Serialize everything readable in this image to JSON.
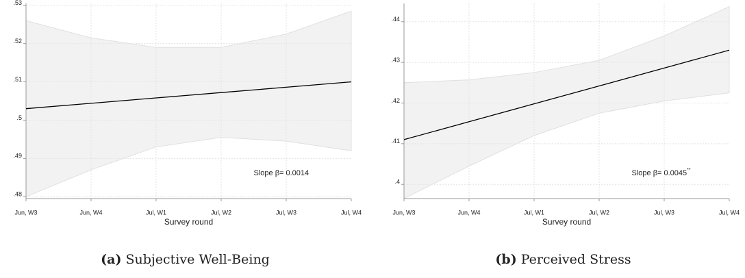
{
  "chart_data": [
    {
      "type": "line",
      "caption_label": "(a)",
      "caption": "Subjective Well-Being",
      "x_label": "Survey round",
      "categories": [
        "Jun, W3",
        "Jun, W4",
        "Jul, W1",
        "Jul, W2",
        "Jul, W3",
        "Jul, W4"
      ],
      "values": [
        0.503,
        0.5044,
        0.5058,
        0.5072,
        0.5086,
        0.51
      ],
      "color": "#000000",
      "band": {
        "upper": [
          0.526,
          0.5215,
          0.519,
          0.519,
          0.5225,
          0.5285
        ],
        "lower": [
          0.48,
          0.487,
          0.493,
          0.4955,
          0.4945,
          0.492
        ],
        "color": "#f2f2f2"
      },
      "annotation": "Slope β= 0.0014",
      "ylim": [
        0.4795,
        0.5305
      ],
      "yticks": [
        {
          "value": 0.48,
          "label": ".48"
        },
        {
          "value": 0.49,
          "label": ".49"
        },
        {
          "value": 0.5,
          "label": ".5"
        },
        {
          "value": 0.51,
          "label": ".51"
        },
        {
          "value": 0.52,
          "label": ".52"
        },
        {
          "value": 0.53,
          "label": ".53"
        }
      ],
      "grid": true
    },
    {
      "type": "line",
      "caption_label": "(b)",
      "caption": "Perceived Stress",
      "x_label": "Survey round",
      "categories": [
        "Jun, W3",
        "Jun, W4",
        "Jul, W1",
        "Jul, W2",
        "Jul, W3",
        "Jul, W4"
      ],
      "values": [
        0.411,
        0.4154,
        0.4198,
        0.4242,
        0.4286,
        0.433
      ],
      "color": "#000000",
      "band": {
        "upper": [
          0.425,
          0.4257,
          0.4275,
          0.4305,
          0.4365,
          0.4437
        ],
        "lower": [
          0.3965,
          0.4045,
          0.412,
          0.4175,
          0.4205,
          0.4225
        ],
        "color": "#f2f2f2"
      },
      "annotation": "Slope β= 0.0045",
      "annotation_stars": "**",
      "ylim": [
        0.3965,
        0.4445
      ],
      "yticks": [
        {
          "value": 0.4,
          "label": ".4"
        },
        {
          "value": 0.41,
          "label": ".41"
        },
        {
          "value": 0.42,
          "label": ".42"
        },
        {
          "value": 0.43,
          "label": ".43"
        },
        {
          "value": 0.44,
          "label": ".44"
        }
      ],
      "grid": true
    }
  ]
}
